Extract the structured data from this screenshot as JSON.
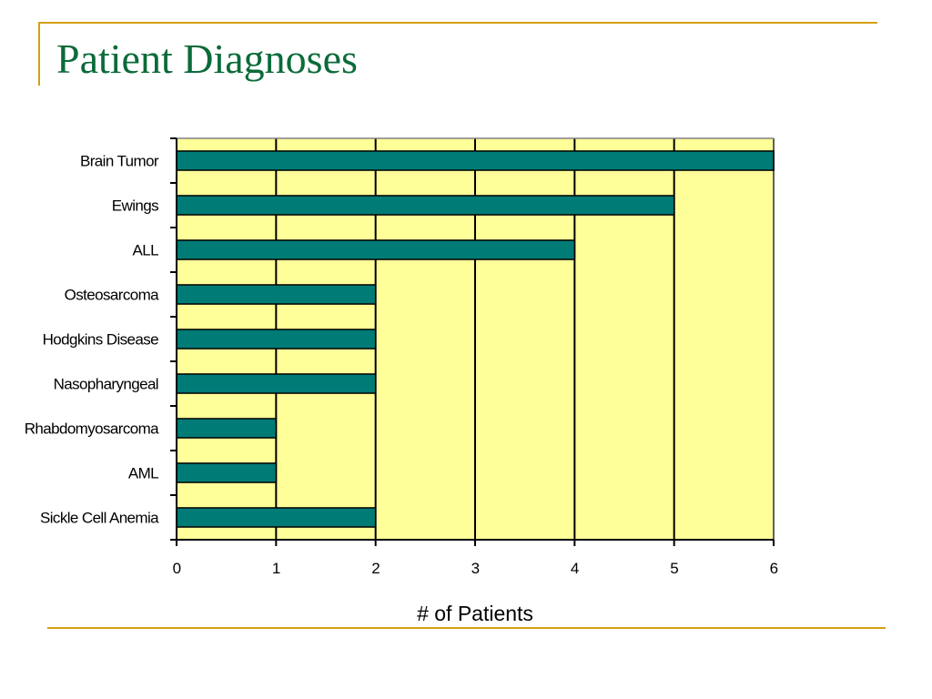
{
  "slide": {
    "title": "Patient Diagnoses"
  },
  "colors": {
    "title": "#0B6B3A",
    "accent_rule": "#D4A017",
    "plot_background": "#FFFF99",
    "bar_fill": "#007B75",
    "grid": "#000000"
  },
  "chart_data": {
    "type": "bar",
    "orientation": "horizontal",
    "categories": [
      "Brain Tumor",
      "Ewings",
      "ALL",
      "Osteosarcoma",
      "Hodgkins Disease",
      "Nasopharyngeal",
      "Rhabdomyosarcoma",
      "AML",
      "Sickle Cell Anemia"
    ],
    "values": [
      6,
      5,
      4,
      2,
      2,
      2,
      1,
      1,
      2
    ],
    "xlabel": "# of Patients",
    "ylabel": "",
    "xlim": [
      0,
      6
    ],
    "xticks": [
      "0",
      "1",
      "2",
      "3",
      "4",
      "5",
      "6"
    ],
    "grid": "vertical",
    "legend": "none"
  }
}
